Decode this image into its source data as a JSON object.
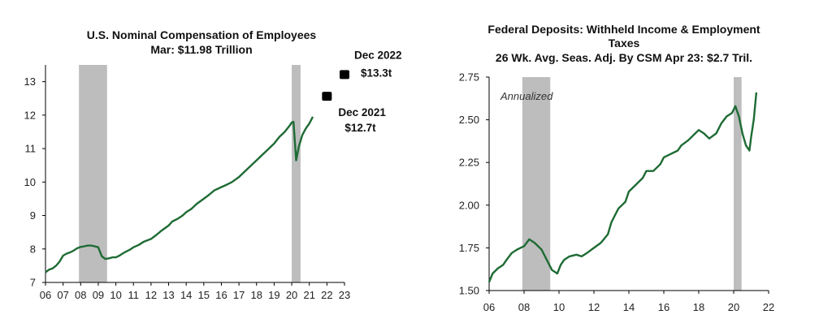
{
  "colors": {
    "line": "#1e6b34",
    "recession": "#bdbdbd",
    "axis": "#000000",
    "marker": "#000000"
  },
  "chart_data": [
    {
      "type": "line",
      "title": [
        "U.S. Nominal Compensation of Employees",
        "Mar: $11.98 Trillion"
      ],
      "xlim": [
        2006,
        2023
      ],
      "ylim": [
        7,
        13.5
      ],
      "yticks": [
        7,
        8,
        9,
        10,
        11,
        12,
        13
      ],
      "xticks": [
        {
          "v": 2006,
          "label": "06"
        },
        {
          "v": 2007,
          "label": "07"
        },
        {
          "v": 2008,
          "label": "08"
        },
        {
          "v": 2009,
          "label": "09"
        },
        {
          "v": 2010,
          "label": "10"
        },
        {
          "v": 2011,
          "label": "11"
        },
        {
          "v": 2012,
          "label": "12"
        },
        {
          "v": 2013,
          "label": "13"
        },
        {
          "v": 2014,
          "label": "14"
        },
        {
          "v": 2015,
          "label": "15"
        },
        {
          "v": 2016,
          "label": "16"
        },
        {
          "v": 2017,
          "label": "17"
        },
        {
          "v": 2018,
          "label": "18"
        },
        {
          "v": 2019,
          "label": "19"
        },
        {
          "v": 2020,
          "label": "20"
        },
        {
          "v": 2021,
          "label": "21"
        },
        {
          "v": 2022,
          "label": "22"
        },
        {
          "v": 2023,
          "label": "23"
        }
      ],
      "recessions": [
        [
          2007.9,
          2009.5
        ],
        [
          2020.0,
          2020.5
        ]
      ],
      "series": [
        {
          "x": [
            2006.0,
            2006.2,
            2006.4,
            2006.6,
            2006.8,
            2007.0,
            2007.2,
            2007.4,
            2007.6,
            2007.8,
            2008.0,
            2008.2,
            2008.4,
            2008.6,
            2008.8,
            2009.0,
            2009.2,
            2009.4,
            2009.6,
            2009.8,
            2010.0,
            2010.2,
            2010.5,
            2010.8,
            2011.0,
            2011.3,
            2011.6,
            2012.0,
            2012.3,
            2012.6,
            2013.0,
            2013.2,
            2013.5,
            2013.8,
            2014.0,
            2014.3,
            2014.6,
            2015.0,
            2015.3,
            2015.6,
            2016.0,
            2016.3,
            2016.6,
            2017.0,
            2017.3,
            2017.6,
            2018.0,
            2018.3,
            2018.6,
            2019.0,
            2019.3,
            2019.6,
            2019.9,
            2020.0,
            2020.1,
            2020.25,
            2020.4,
            2020.6,
            2020.8,
            2021.0,
            2021.2
          ],
          "y": [
            7.3,
            7.38,
            7.42,
            7.5,
            7.62,
            7.8,
            7.86,
            7.9,
            7.95,
            8.02,
            8.06,
            8.08,
            8.1,
            8.1,
            8.08,
            8.05,
            7.78,
            7.7,
            7.72,
            7.75,
            7.75,
            7.8,
            7.9,
            7.98,
            8.05,
            8.12,
            8.22,
            8.3,
            8.42,
            8.55,
            8.7,
            8.82,
            8.9,
            9.0,
            9.1,
            9.2,
            9.35,
            9.5,
            9.62,
            9.75,
            9.85,
            9.92,
            10.0,
            10.15,
            10.3,
            10.45,
            10.65,
            10.8,
            10.95,
            11.15,
            11.35,
            11.5,
            11.7,
            11.78,
            11.8,
            10.65,
            11.05,
            11.4,
            11.6,
            11.75,
            11.95
          ]
        }
      ],
      "points": [
        {
          "x": 2022.0,
          "y": 12.55,
          "label": "Dec 2021",
          "value": "$12.7t"
        },
        {
          "x": 2023.0,
          "y": 13.2,
          "label": "Dec 2022",
          "value": "$13.3t"
        }
      ]
    },
    {
      "type": "line",
      "title": [
        "Federal Deposits: Withheld Income & Employment",
        "Taxes",
        "26 Wk. Avg. Seas. Adj. By CSM  Apr 23: $2.7 Tril."
      ],
      "annotation": "Annualized",
      "xlim": [
        2006,
        2022
      ],
      "ylim": [
        1.5,
        2.75
      ],
      "yticks": [
        {
          "v": 1.5,
          "label": "1.50"
        },
        {
          "v": 1.75,
          "label": "1.75"
        },
        {
          "v": 2.0,
          "label": "2.00"
        },
        {
          "v": 2.25,
          "label": "2.25"
        },
        {
          "v": 2.5,
          "label": "2.50"
        },
        {
          "v": 2.75,
          "label": "2.75"
        }
      ],
      "xticks": [
        {
          "v": 2006,
          "label": "06"
        },
        {
          "v": 2008,
          "label": "08"
        },
        {
          "v": 2010,
          "label": "10"
        },
        {
          "v": 2012,
          "label": "12"
        },
        {
          "v": 2014,
          "label": "14"
        },
        {
          "v": 2016,
          "label": "16"
        },
        {
          "v": 2018,
          "label": "18"
        },
        {
          "v": 2020,
          "label": "20"
        },
        {
          "v": 2022,
          "label": "22"
        }
      ],
      "recessions": [
        [
          2007.9,
          2009.5
        ],
        [
          2020.0,
          2020.45
        ]
      ],
      "series": [
        {
          "x": [
            2006.0,
            2006.2,
            2006.5,
            2006.8,
            2007.0,
            2007.3,
            2007.6,
            2008.0,
            2008.3,
            2008.6,
            2009.0,
            2009.3,
            2009.6,
            2009.9,
            2010.1,
            2010.3,
            2010.6,
            2011.0,
            2011.3,
            2011.6,
            2012.0,
            2012.4,
            2012.8,
            2013.0,
            2013.4,
            2013.8,
            2014.0,
            2014.4,
            2014.8,
            2015.0,
            2015.4,
            2015.8,
            2016.0,
            2016.4,
            2016.8,
            2017.0,
            2017.4,
            2017.8,
            2018.0,
            2018.3,
            2018.6,
            2019.0,
            2019.3,
            2019.6,
            2019.9,
            2020.1,
            2020.3,
            2020.5,
            2020.7,
            2020.9,
            2021.0,
            2021.15,
            2021.3
          ],
          "y": [
            1.55,
            1.6,
            1.63,
            1.65,
            1.68,
            1.72,
            1.74,
            1.76,
            1.8,
            1.78,
            1.74,
            1.68,
            1.62,
            1.6,
            1.65,
            1.68,
            1.7,
            1.71,
            1.7,
            1.72,
            1.75,
            1.78,
            1.83,
            1.9,
            1.98,
            2.02,
            2.08,
            2.12,
            2.16,
            2.2,
            2.2,
            2.24,
            2.28,
            2.3,
            2.32,
            2.35,
            2.38,
            2.42,
            2.44,
            2.42,
            2.39,
            2.42,
            2.48,
            2.52,
            2.54,
            2.58,
            2.52,
            2.42,
            2.35,
            2.32,
            2.4,
            2.5,
            2.66
          ]
        }
      ]
    }
  ]
}
